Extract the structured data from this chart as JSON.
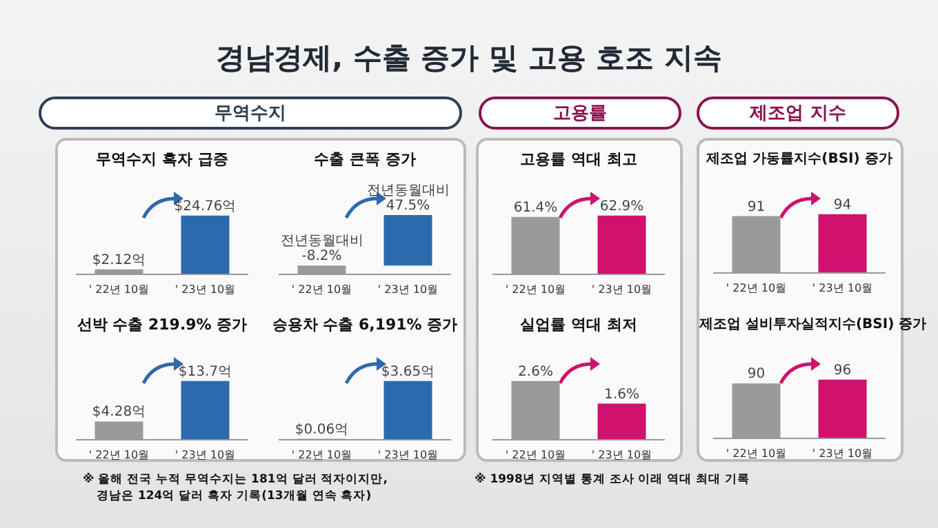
{
  "chart_data": [
    {
      "type": "other",
      "title": "경남경제, 수출 증가 및 고용 호조 지속",
      "annotations": [
        "무역수지",
        "고용률",
        "제조업 지수",
        "※ 올해 전국 누적 무역수지는 181억 달러 적자이지만,",
        "경남은 124억 달러 흑자 기록(13개월 연속 흑자)",
        "※ 1998년 지역별 통계 조사 이래 역대 최대 기록"
      ]
    },
    {
      "type": "bar",
      "title": "무역수지 흑자 급증",
      "categories": [
        "' 22년 10월",
        "' 23년 10월"
      ],
      "values": [
        2.12,
        24.76
      ],
      "colors": [
        "#9a9a9a",
        "#2d69ad"
      ],
      "value_labels": [
        "$2.12억",
        "$24.76억"
      ],
      "tick_labels": "x"
    },
    {
      "type": "bar",
      "title": "수출 큰폭 증가",
      "categories": [
        "' 22년 10월",
        "' 23년 10월"
      ],
      "values": [
        -8.2,
        47.5
      ],
      "colors": [
        "#9a9a9a",
        "#2d69ad"
      ],
      "value_labels": [
        "전년동월대비 -8.2%",
        "전년동월대비 47.5%"
      ],
      "tick_labels": "x"
    },
    {
      "type": "bar",
      "title": "선박 수출 219.9% 증가",
      "categories": [
        "' 22년 10월",
        "' 23년 10월"
      ],
      "values": [
        4.28,
        13.7
      ],
      "colors": [
        "#9a9a9a",
        "#2d69ad"
      ],
      "value_labels": [
        "$4.28억",
        "$13.7억"
      ],
      "tick_labels": "x"
    },
    {
      "type": "bar",
      "title": "승용차 수출 6,191% 증가",
      "categories": [
        "' 22년 10월",
        "' 23년 10월"
      ],
      "values": [
        0.06,
        3.65
      ],
      "colors": [
        "#9a9a9a",
        "#2d69ad"
      ],
      "value_labels": [
        "$0.06억",
        "$3.65억"
      ],
      "tick_labels": "x"
    },
    {
      "type": "bar",
      "title": "고용률 역대 최고",
      "categories": [
        "' 22년 10월",
        "' 23년 10월"
      ],
      "values": [
        61.4,
        62.9
      ],
      "colors": [
        "#9a9a9a",
        "#d0126e"
      ],
      "value_labels": [
        "61.4%",
        "62.9%"
      ],
      "tick_labels": "x"
    },
    {
      "type": "bar",
      "title": "실업률 역대 최저",
      "categories": [
        "' 22년 10월",
        "' 23년 10월"
      ],
      "values": [
        2.6,
        1.6
      ],
      "colors": [
        "#9a9a9a",
        "#d0126e"
      ],
      "value_labels": [
        "2.6%",
        "1.6%"
      ],
      "tick_labels": "x"
    },
    {
      "type": "bar",
      "title": "제조업 가동률지수(BSI) 증가",
      "categories": [
        "' 22년 10월",
        "' 23년 10월"
      ],
      "values": [
        91,
        94
      ],
      "colors": [
        "#9a9a9a",
        "#d0126e"
      ],
      "data_labels": true,
      "tick_labels": "x"
    },
    {
      "type": "bar",
      "title": "제조업 설비투자실적지수(BSI) 증가",
      "categories": [
        "' 22년 10월",
        "' 23년 10월"
      ],
      "values": [
        90,
        96
      ],
      "colors": [
        "#9a9a9a",
        "#d0126e"
      ],
      "data_labels": true,
      "tick_labels": "x"
    }
  ]
}
